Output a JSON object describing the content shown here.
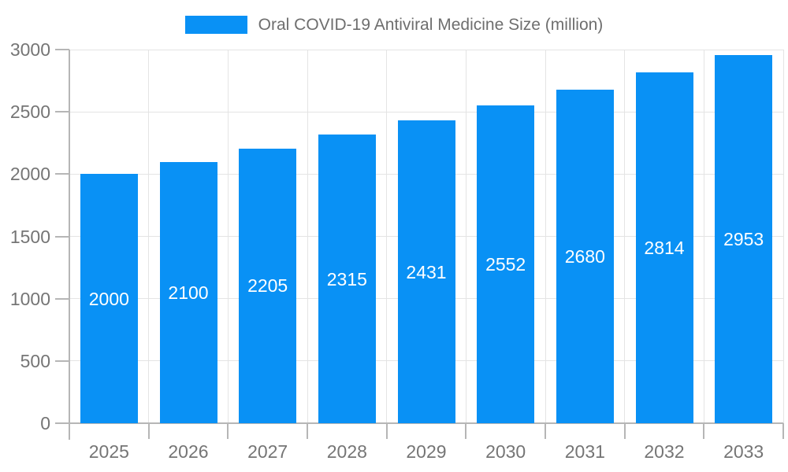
{
  "legend": {
    "label": "Oral COVID-19 Antiviral Medicine Size (million)"
  },
  "chart_data": {
    "type": "bar",
    "title": "Oral COVID-19 Antiviral Medicine Size (million)",
    "categories": [
      "2025",
      "2026",
      "2027",
      "2028",
      "2029",
      "2030",
      "2031",
      "2032",
      "2033"
    ],
    "values": [
      2000,
      2100,
      2205,
      2315,
      2431,
      2552,
      2680,
      2814,
      2953
    ],
    "series_name": "Oral COVID-19 Antiviral Medicine Size (million)",
    "xlabel": "",
    "ylabel": "",
    "ylim": [
      0,
      3000
    ],
    "yticks": [
      0,
      500,
      1000,
      1500,
      2000,
      2500,
      3000
    ],
    "grid": true,
    "legend_position": "top",
    "value_labels": "inside-center",
    "colors": {
      "bar": "#0991F5",
      "grid": "#E4E4E4",
      "axis": "#B6B6B6",
      "tick_label": "#757575",
      "legend_text": "#6E6E6E",
      "value_label": "#FFFFFF",
      "background": "#FFFFFF"
    }
  }
}
